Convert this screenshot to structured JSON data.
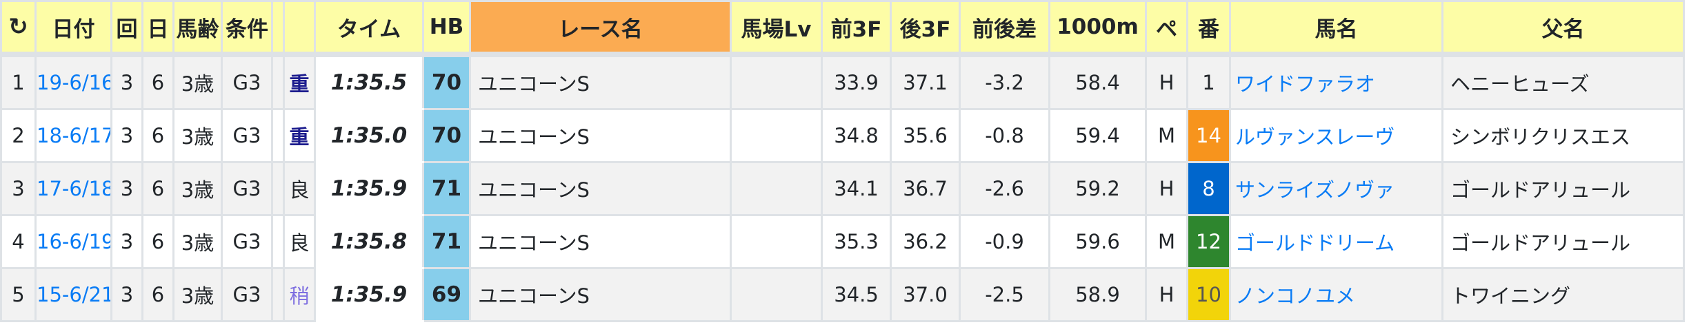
{
  "header": {
    "refresh_icon": "refresh-icon",
    "columns": [
      "日付",
      "回",
      "日",
      "馬齢",
      "条件",
      "",
      "",
      "タイム",
      "HB",
      "レース名",
      "馬場Lv",
      "前3F",
      "後3F",
      "前後差",
      "1000m",
      "ペ",
      "番",
      "馬名",
      "父名"
    ]
  },
  "colors": {
    "header_bg": "#fdfda6",
    "race_header_bg": "#fbab52",
    "hb_bg": "#87ceeb",
    "link": "#0a7cf5"
  },
  "rows": [
    {
      "no": "1",
      "date": "19-6/16",
      "kai": "3",
      "day": "6",
      "age": "3歳",
      "grade": "G3",
      "track": "重",
      "track_type": "heavy",
      "time": "1:35.5",
      "hb": "70",
      "race": "ユニコーンS",
      "lv": "",
      "f3": "33.9",
      "l3": "37.1",
      "diff": "-3.2",
      "m1000": "58.4",
      "pace": "H",
      "num": "1",
      "num_bg": "#f2f2f2",
      "num_fg": "#212529",
      "horse": "ワイドファラオ",
      "sire": "ヘニーヒューズ"
    },
    {
      "no": "2",
      "date": "18-6/17",
      "kai": "3",
      "day": "6",
      "age": "3歳",
      "grade": "G3",
      "track": "重",
      "track_type": "heavy",
      "time": "1:35.0",
      "hb": "70",
      "race": "ユニコーンS",
      "lv": "",
      "f3": "34.8",
      "l3": "35.6",
      "diff": "-0.8",
      "m1000": "59.4",
      "pace": "M",
      "num": "14",
      "num_bg": "#f7941d",
      "num_fg": "#ffffff",
      "horse": "ルヴァンスレーヴ",
      "sire": "シンボリクリスエス"
    },
    {
      "no": "3",
      "date": "17-6/18",
      "kai": "3",
      "day": "6",
      "age": "3歳",
      "grade": "G3",
      "track": "良",
      "track_type": "good",
      "time": "1:35.9",
      "hb": "71",
      "race": "ユニコーンS",
      "lv": "",
      "f3": "34.1",
      "l3": "36.7",
      "diff": "-2.6",
      "m1000": "59.2",
      "pace": "H",
      "num": "8",
      "num_bg": "#0066cc",
      "num_fg": "#ffffff",
      "horse": "サンライズノヴァ",
      "sire": "ゴールドアリュール"
    },
    {
      "no": "4",
      "date": "16-6/19",
      "kai": "3",
      "day": "6",
      "age": "3歳",
      "grade": "G3",
      "track": "良",
      "track_type": "good",
      "time": "1:35.8",
      "hb": "71",
      "race": "ユニコーンS",
      "lv": "",
      "f3": "35.3",
      "l3": "36.2",
      "diff": "-0.9",
      "m1000": "59.6",
      "pace": "M",
      "num": "12",
      "num_bg": "#2e862e",
      "num_fg": "#ffffff",
      "horse": "ゴールドドリーム",
      "sire": "ゴールドアリュール"
    },
    {
      "no": "5",
      "date": "15-6/21",
      "kai": "3",
      "day": "6",
      "age": "3歳",
      "grade": "G3",
      "track": "稍",
      "track_type": "slight",
      "time": "1:35.9",
      "hb": "69",
      "race": "ユニコーンS",
      "lv": "",
      "f3": "34.5",
      "l3": "37.0",
      "diff": "-2.5",
      "m1000": "58.9",
      "pace": "H",
      "num": "10",
      "num_bg": "#f2d40a",
      "num_fg": "#555555",
      "horse": "ノンコノユメ",
      "sire": "トワイニング"
    }
  ]
}
